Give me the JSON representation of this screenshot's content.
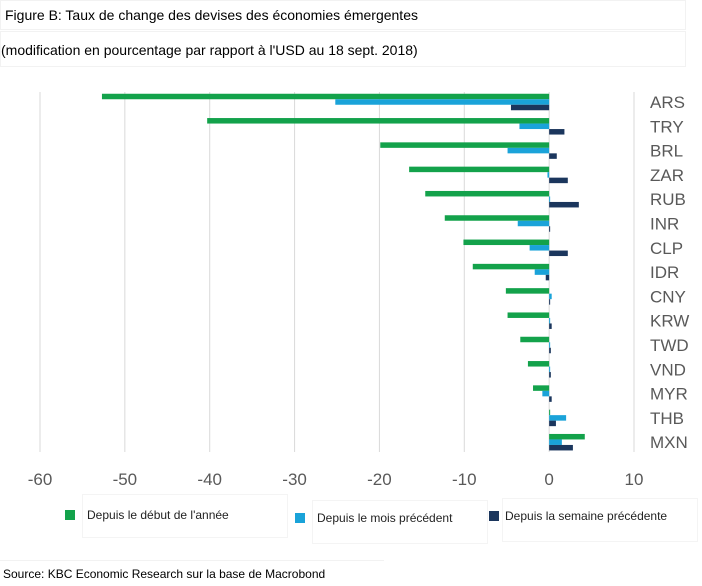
{
  "title": "Figure B: Taux de change des devises des économies émergentes",
  "subtitle": "(modification en pourcentage par rapport à l'USD au 18 sept. 2018)",
  "source": "Source: KBC Economic Research sur la base de Macrobond",
  "colors": {
    "series1": "#13a24b",
    "series2": "#1aa3d9",
    "series3": "#1b365d",
    "grid": "#d9d9d9",
    "axis_text": "#595959"
  },
  "chart_data": {
    "type": "bar",
    "orientation": "horizontal",
    "categories": [
      "ARS",
      "TRY",
      "BRL",
      "ZAR",
      "RUB",
      "INR",
      "CLP",
      "IDR",
      "CNY",
      "KRW",
      "TWD",
      "VND",
      "MYR",
      "THB",
      "MXN"
    ],
    "xlim": [
      -60,
      10
    ],
    "xticks": [
      -60,
      -50,
      -40,
      -30,
      -20,
      -10,
      0,
      10
    ],
    "grid": true,
    "legend_position": "bottom",
    "series": [
      {
        "name": "Depuis le début de l'année",
        "values": [
          -52.7,
          -40.3,
          -19.9,
          -16.5,
          -14.6,
          -12.3,
          -10.1,
          -9.0,
          -5.1,
          -4.9,
          -3.4,
          -2.5,
          -1.9,
          0.1,
          4.2
        ]
      },
      {
        "name": "Depuis le mois précédent",
        "values": [
          -25.2,
          -3.5,
          -4.9,
          -0.2,
          0.1,
          -3.7,
          -2.3,
          -1.7,
          0.3,
          0.1,
          0.1,
          0.1,
          -0.8,
          2.0,
          1.5
        ]
      },
      {
        "name": "Depuis la semaine précédente",
        "values": [
          -4.5,
          1.8,
          0.9,
          2.2,
          3.5,
          0.1,
          2.2,
          -0.4,
          0.1,
          0.3,
          0.2,
          0.2,
          0.3,
          0.8,
          2.8
        ]
      }
    ]
  }
}
